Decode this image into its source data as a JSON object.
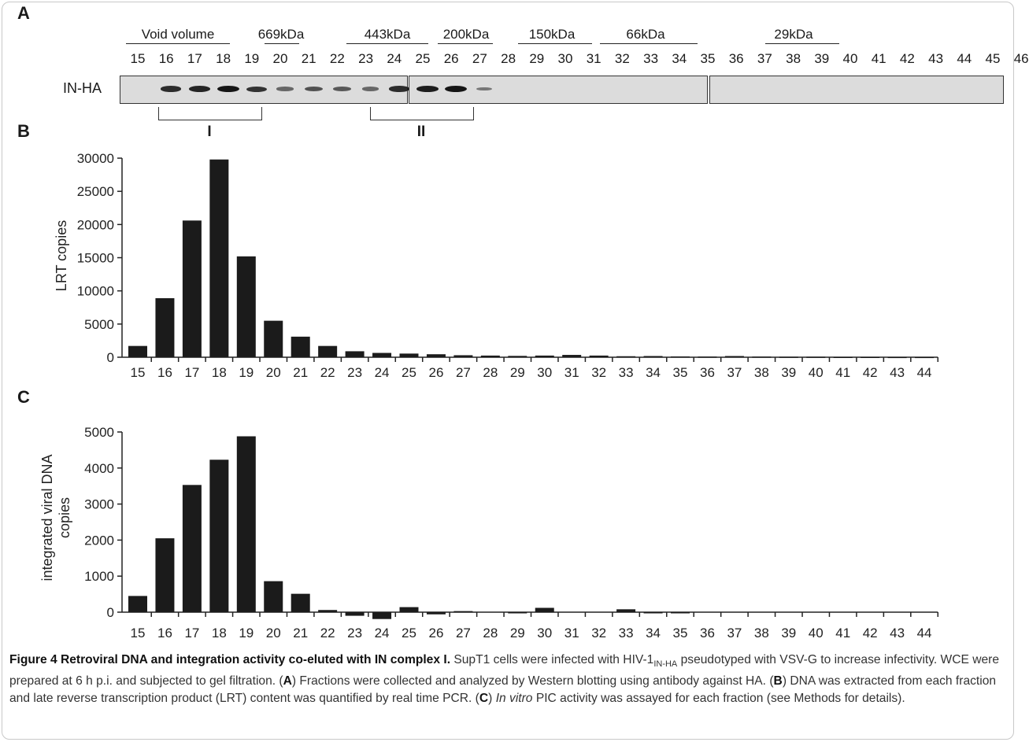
{
  "panels": {
    "a": "A",
    "b": "B",
    "c": "C"
  },
  "blot": {
    "label": "IN-HA",
    "fractions": [
      "15",
      "16",
      "17",
      "18",
      "19",
      "20",
      "21",
      "22",
      "23",
      "24",
      "25",
      "26",
      "27",
      "28",
      "29",
      "30",
      "31",
      "32",
      "33",
      "34",
      "35",
      "36",
      "37",
      "38",
      "39",
      "40",
      "41",
      "42",
      "43",
      "44",
      "45",
      "46"
    ],
    "markers": [
      "Void volume",
      "669kDa",
      "443kDa",
      "200kDa",
      "150kDa",
      "66kDa",
      "29kDa"
    ],
    "band_intensity": [
      0,
      0.85,
      0.9,
      1.0,
      0.8,
      0.45,
      0.6,
      0.55,
      0.45,
      0.85,
      0.95,
      1.0,
      0.35,
      0,
      0,
      0,
      0,
      0,
      0,
      0,
      0,
      0,
      0,
      0,
      0,
      0,
      0,
      0,
      0,
      0,
      0,
      0
    ],
    "groups": [
      "I",
      "II"
    ]
  },
  "chart_data": [
    {
      "type": "bar",
      "ylabel": "LRT copies",
      "xlabel": "",
      "ylim": [
        0,
        30000
      ],
      "yticks": [
        0,
        5000,
        10000,
        15000,
        20000,
        25000,
        30000
      ],
      "categories": [
        "15",
        "16",
        "17",
        "18",
        "19",
        "20",
        "21",
        "22",
        "23",
        "24",
        "25",
        "26",
        "27",
        "28",
        "29",
        "30",
        "31",
        "32",
        "33",
        "34",
        "35",
        "36",
        "37",
        "38",
        "39",
        "40",
        "41",
        "42",
        "43",
        "44"
      ],
      "values": [
        1700,
        8900,
        20600,
        29800,
        15200,
        5500,
        3100,
        1700,
        900,
        650,
        550,
        450,
        300,
        250,
        200,
        250,
        350,
        250,
        150,
        180,
        120,
        100,
        180,
        100,
        80,
        80,
        60,
        60,
        50,
        50
      ]
    },
    {
      "type": "bar",
      "ylabel": "integrated viral DNA copies",
      "xlabel": "",
      "ylim": [
        -250,
        5000
      ],
      "yticks": [
        0,
        1000,
        2000,
        3000,
        4000,
        5000
      ],
      "categories": [
        "15",
        "16",
        "17",
        "18",
        "19",
        "20",
        "21",
        "22",
        "23",
        "24",
        "25",
        "26",
        "27",
        "28",
        "29",
        "30",
        "31",
        "32",
        "33",
        "34",
        "35",
        "36",
        "37",
        "38",
        "39",
        "40",
        "41",
        "42",
        "43",
        "44"
      ],
      "values": [
        450,
        2050,
        3530,
        4230,
        4880,
        860,
        510,
        60,
        -100,
        -190,
        140,
        -60,
        30,
        0,
        -30,
        120,
        0,
        0,
        80,
        -20,
        -10,
        0,
        0,
        0,
        0,
        0,
        0,
        0,
        0,
        0
      ]
    }
  ],
  "caption": {
    "title": "Figure 4 Retroviral DNA and integration activity co-eluted with IN complex I.",
    "p1": " SupT1 cells were infected with HIV-1",
    "sub": "IN-HA",
    "p2": " pseudotyped with VSV-G to increase infectivity. WCE were prepared at 6 h p.i. and subjected to gel filtration. (",
    "a": "A",
    "p3": ") Fractions were collected and analyzed by Western blotting using antibody against HA. (",
    "b": "B",
    "p4": ") DNA was extracted from each fraction and late reverse transcription product (LRT) content was quantified by real time PCR. (",
    "c": "C",
    "italic": "In vitro",
    "p5": " PIC activity was assayed for each fraction (see Methods for details)."
  }
}
